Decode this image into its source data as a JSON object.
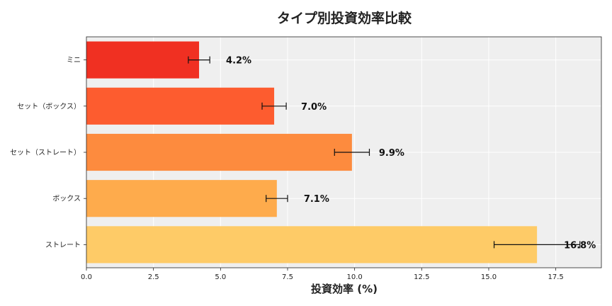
{
  "chart_data": {
    "type": "bar",
    "orientation": "horizontal",
    "title": "タイプ別投資効率比較",
    "xlabel": "投資効率 (%)",
    "ylabel": "",
    "xlim": [
      0,
      19.2
    ],
    "xticks": [
      0.0,
      2.5,
      5.0,
      7.5,
      10.0,
      12.5,
      15.0,
      17.5
    ],
    "xtick_labels": [
      "0.0",
      "2.5",
      "5.0",
      "7.5",
      "10.0",
      "12.5",
      "15.0",
      "17.5"
    ],
    "grid": true,
    "categories": [
      "ミニ",
      "セット（ボックス）",
      "セット（ストレート）",
      "ボックス",
      "ストレート"
    ],
    "values": [
      4.2,
      7.0,
      9.9,
      7.1,
      16.8
    ],
    "errors": [
      0.4,
      0.45,
      0.65,
      0.4,
      1.6
    ],
    "data_labels": [
      "4.2%",
      "7.0%",
      "9.9%",
      "7.1%",
      "16.8%"
    ],
    "colors": [
      "#f03022",
      "#fd5c2f",
      "#fd8b3e",
      "#feab4c",
      "#fecb67"
    ],
    "background": "#efefef"
  }
}
